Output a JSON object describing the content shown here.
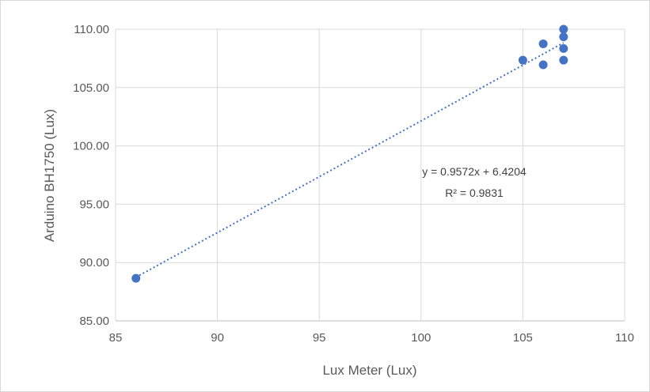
{
  "chart_data": {
    "type": "scatter",
    "title": "",
    "xlabel": "Lux Meter (Lux)",
    "ylabel": "Arduino BH1750 (Lux)",
    "xlim": [
      85,
      110
    ],
    "ylim": [
      85,
      110
    ],
    "x_ticks": [
      85,
      90,
      95,
      100,
      105,
      110
    ],
    "x_tick_labels": [
      "85",
      "90",
      "95",
      "100",
      "105",
      "110"
    ],
    "y_ticks": [
      85,
      90,
      95,
      100,
      105,
      110
    ],
    "y_tick_labels": [
      "85.00",
      "90.00",
      "95.00",
      "100.00",
      "105.00",
      "110.00"
    ],
    "grid": true,
    "series": [
      {
        "color": "#4472C4",
        "points": [
          {
            "x": 86,
            "y": 88.65
          },
          {
            "x": 105,
            "y": 107.35
          },
          {
            "x": 106,
            "y": 108.75
          },
          {
            "x": 106,
            "y": 106.95
          },
          {
            "x": 107,
            "y": 110.0
          },
          {
            "x": 107,
            "y": 109.35
          },
          {
            "x": 107,
            "y": 108.35
          },
          {
            "x": 107,
            "y": 107.35
          }
        ]
      }
    ],
    "trendline": {
      "type": "linear",
      "style": "dotted",
      "color": "#4472C4",
      "slope": 0.9572,
      "intercept": 6.4204,
      "x_range": [
        86,
        107
      ]
    },
    "annotations": {
      "equation": "y = 0.9572x + 6.4204",
      "r_squared": "R² = 0.9831"
    }
  }
}
